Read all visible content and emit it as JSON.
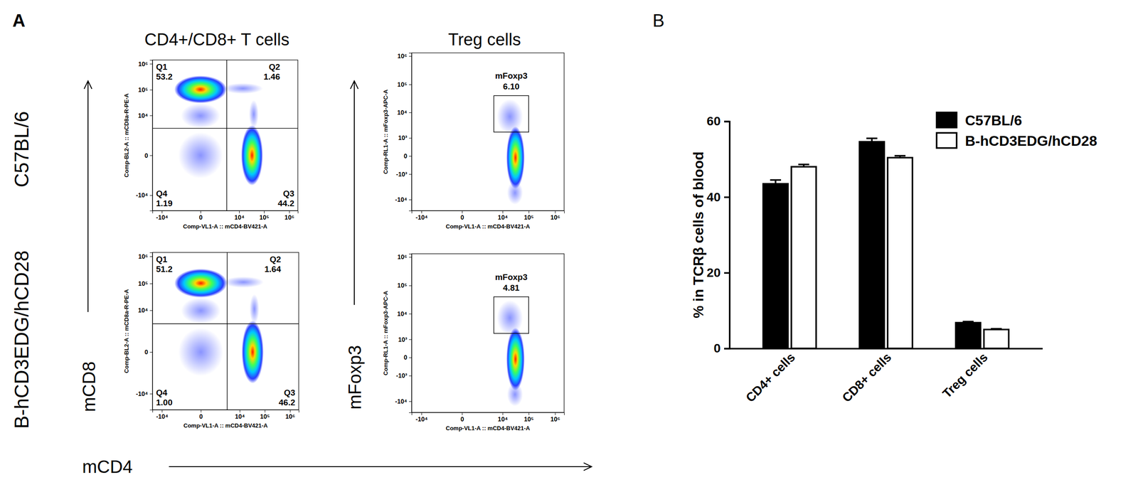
{
  "figure": {
    "panel_labels": [
      "A",
      "B"
    ],
    "column_titles": [
      "CD4+/CD8+ T cells",
      "Treg cells"
    ],
    "row_labels": [
      "C57BL/6",
      "B-hCD3EDG/hCD28"
    ],
    "axis_markers": {
      "y": [
        "mCD8",
        "mFoxp3"
      ],
      "x": "mCD4"
    }
  },
  "chart_data": [
    {
      "type": "density",
      "x_label": "Comp-VL1-A :: mCD4-BV421-A",
      "y_label": "Comp-BL2-A :: mCD8a-R-PE-A",
      "log": true,
      "xlim": [
        -24000,
        2200000
      ],
      "xticks": [
        {
          "value": -10000,
          "label": "-10⁴"
        },
        0,
        {
          "value": 10000,
          "label": "10⁴"
        },
        {
          "value": 100000,
          "label": "10⁵"
        },
        {
          "value": 1000000,
          "label": "10⁶"
        }
      ],
      "ylim": [
        -40000,
        1400000
      ],
      "yticks": [
        {
          "value": -10000,
          "label": "-10⁴"
        },
        0,
        {
          "value": 10000,
          "label": "10⁴"
        },
        {
          "value": 100000,
          "label": "10⁵"
        },
        {
          "value": 1000000,
          "label": "10⁶"
        }
      ],
      "populations": [
        {
          "xrange": [
            2000,
            90000
          ],
          "yrange": [
            70000,
            180000
          ],
          "color": "#2a3cff"
        },
        {
          "xrange": [
            25000,
            60000
          ],
          "yrange": [
            3000,
            40000
          ],
          "color": "#2a3cff"
        },
        {
          "xrange": [
            -2000,
            2000
          ],
          "yrange": [
            -2000,
            2000
          ],
          "color": "#2a3cff"
        },
        {
          "xrange": [
            -1500,
            1500
          ],
          "yrange": [
            3000,
            30000
          ],
          "color": "#2a3cff"
        },
        {
          "xrange": [
            -3000,
            3000
          ],
          "yrange": [
            30000,
            350000
          ],
          "color": "#ff1a00"
        },
        {
          "xrange": [
            12000,
            90000
          ],
          "yrange": [
            -4000,
            4000
          ],
          "color": "#ff1a00"
        }
      ],
      "quadrant_gate": {
        "x": 3000,
        "y": 3000
      },
      "quadrants": [
        {
          "name": "Q1",
          "value": 53.2
        },
        {
          "name": "Q2",
          "value": 1.46
        },
        {
          "name": "Q3",
          "value": 44.2
        },
        {
          "name": "Q4",
          "value": 1.19
        }
      ]
    },
    {
      "type": "density",
      "x_label": "Comp-VL1-A :: mCD4-BV421-A",
      "y_label": "Comp-BL2-A :: mCD8a-R-PE-A",
      "log": true,
      "xlim": [
        -24000,
        2200000
      ],
      "xticks": [
        {
          "value": -10000,
          "label": "-10⁴"
        },
        0,
        {
          "value": 10000,
          "label": "10⁴"
        },
        {
          "value": 100000,
          "label": "10⁵"
        },
        {
          "value": 1000000,
          "label": "10⁶"
        }
      ],
      "ylim": [
        -40000,
        1400000
      ],
      "yticks": [
        {
          "value": -10000,
          "label": "-10⁴"
        },
        0,
        {
          "value": 10000,
          "label": "10⁴"
        },
        {
          "value": 100000,
          "label": "10⁵"
        },
        {
          "value": 1000000,
          "label": "10⁶"
        }
      ],
      "populations": [
        {
          "xrange": [
            2000,
            90000
          ],
          "yrange": [
            70000,
            180000
          ],
          "color": "#2a3cff"
        },
        {
          "xrange": [
            25000,
            60000
          ],
          "yrange": [
            3000,
            40000
          ],
          "color": "#2a3cff"
        },
        {
          "xrange": [
            -2000,
            2000
          ],
          "yrange": [
            -2000,
            2000
          ],
          "color": "#2a3cff"
        },
        {
          "xrange": [
            -1500,
            1500
          ],
          "yrange": [
            3000,
            30000
          ],
          "color": "#2a3cff"
        },
        {
          "xrange": [
            -3000,
            3000
          ],
          "yrange": [
            30000,
            350000
          ],
          "color": "#ff1a00"
        },
        {
          "xrange": [
            12000,
            90000
          ],
          "yrange": [
            -4000,
            4000
          ],
          "color": "#ff1a00"
        }
      ],
      "quadrant_gate": {
        "x": 3000,
        "y": 3000
      },
      "quadrants": [
        {
          "name": "Q1",
          "value": 51.2
        },
        {
          "name": "Q2",
          "value": 1.64
        },
        {
          "name": "Q3",
          "value": 46.2
        },
        {
          "name": "Q4",
          "value": 1.0,
          "value_label": "1.00"
        }
      ]
    },
    {
      "type": "density",
      "x_label": "Comp-VL1-A :: mCD4-BV421-A",
      "y_label": "Comp-RL1-A :: mFoxp3-APC-A",
      "log": true,
      "xlim": [
        -24000,
        2200000
      ],
      "xticks": [
        {
          "value": -10000,
          "label": "-10⁴"
        },
        0,
        {
          "value": 10000,
          "label": "10⁴"
        },
        {
          "value": 100000,
          "label": "10⁵"
        },
        {
          "value": 1000000,
          "label": "10⁶"
        }
      ],
      "ylim": [
        -25000,
        1300000
      ],
      "yticks": [
        {
          "value": -10000,
          "label": "-10⁴"
        },
        {
          "value": -1000,
          "label": "-10³"
        },
        0,
        {
          "value": 1000,
          "label": "10³"
        },
        {
          "value": 10000,
          "label": "10⁴"
        },
        {
          "value": 100000,
          "label": "10⁵"
        },
        {
          "value": 1000000,
          "label": "10⁶"
        }
      ],
      "populations": [
        {
          "xrange": [
            6000,
            60000
          ],
          "yrange": [
            1500,
            30000
          ],
          "color": "#2a3cff"
        },
        {
          "xrange": [
            15000,
            60000
          ],
          "yrange": [
            -15000,
            -2000
          ],
          "color": "#2a3cff"
        },
        {
          "xrange": [
            14000,
            70000
          ],
          "yrange": [
            -4000,
            3000
          ],
          "color": "#ff1a00"
        }
      ],
      "gate": {
        "name": "mFoxp3",
        "value": 6.1,
        "value_label": "6.10",
        "xrange": [
          4500,
          100000
        ],
        "yrange": [
          1800,
          40000
        ]
      }
    },
    {
      "type": "density",
      "x_label": "Comp-VL1-A :: mCD4-BV421-A",
      "y_label": "Comp-RL1-A :: mFoxp3-APC-A",
      "log": true,
      "xlim": [
        -24000,
        2200000
      ],
      "xticks": [
        {
          "value": -10000,
          "label": "-10⁴"
        },
        0,
        {
          "value": 10000,
          "label": "10⁴"
        },
        {
          "value": 100000,
          "label": "10⁵"
        },
        {
          "value": 1000000,
          "label": "10⁶"
        }
      ],
      "ylim": [
        -25000,
        1300000
      ],
      "yticks": [
        {
          "value": -10000,
          "label": "-10⁴"
        },
        {
          "value": -1000,
          "label": "-10³"
        },
        0,
        {
          "value": 1000,
          "label": "10³"
        },
        {
          "value": 10000,
          "label": "10⁴"
        },
        {
          "value": 100000,
          "label": "10⁵"
        },
        {
          "value": 1000000,
          "label": "10⁶"
        }
      ],
      "populations": [
        {
          "xrange": [
            6000,
            60000
          ],
          "yrange": [
            1500,
            30000
          ],
          "color": "#2a3cff"
        },
        {
          "xrange": [
            15000,
            60000
          ],
          "yrange": [
            -15000,
            -2000
          ],
          "color": "#2a3cff"
        },
        {
          "xrange": [
            14000,
            70000
          ],
          "yrange": [
            -4000,
            3000
          ],
          "color": "#ff1a00"
        }
      ],
      "gate": {
        "name": "mFoxp3",
        "value": 4.81,
        "xrange": [
          4500,
          100000
        ],
        "yrange": [
          1800,
          40000
        ]
      }
    },
    {
      "type": "bar",
      "y_label": "% in TCRβ cells of blood",
      "categories": [
        "CD4+ cells",
        "CD8+ cells",
        "Treg cells"
      ],
      "series": [
        {
          "name": "C57BL/6",
          "color": "#000000",
          "values": [
            43.5,
            54.6,
            6.8
          ],
          "errors": [
            1.0,
            0.9,
            0.3
          ]
        },
        {
          "name": "B-hCD3EDG/hCD28",
          "color": "#ffffff",
          "values": [
            48.0,
            50.4,
            5.0
          ],
          "errors": [
            0.6,
            0.5,
            0.2
          ]
        }
      ],
      "ylim": [
        0,
        60
      ],
      "yticks": [
        0,
        20,
        40,
        60
      ],
      "legend": "top-right"
    }
  ]
}
